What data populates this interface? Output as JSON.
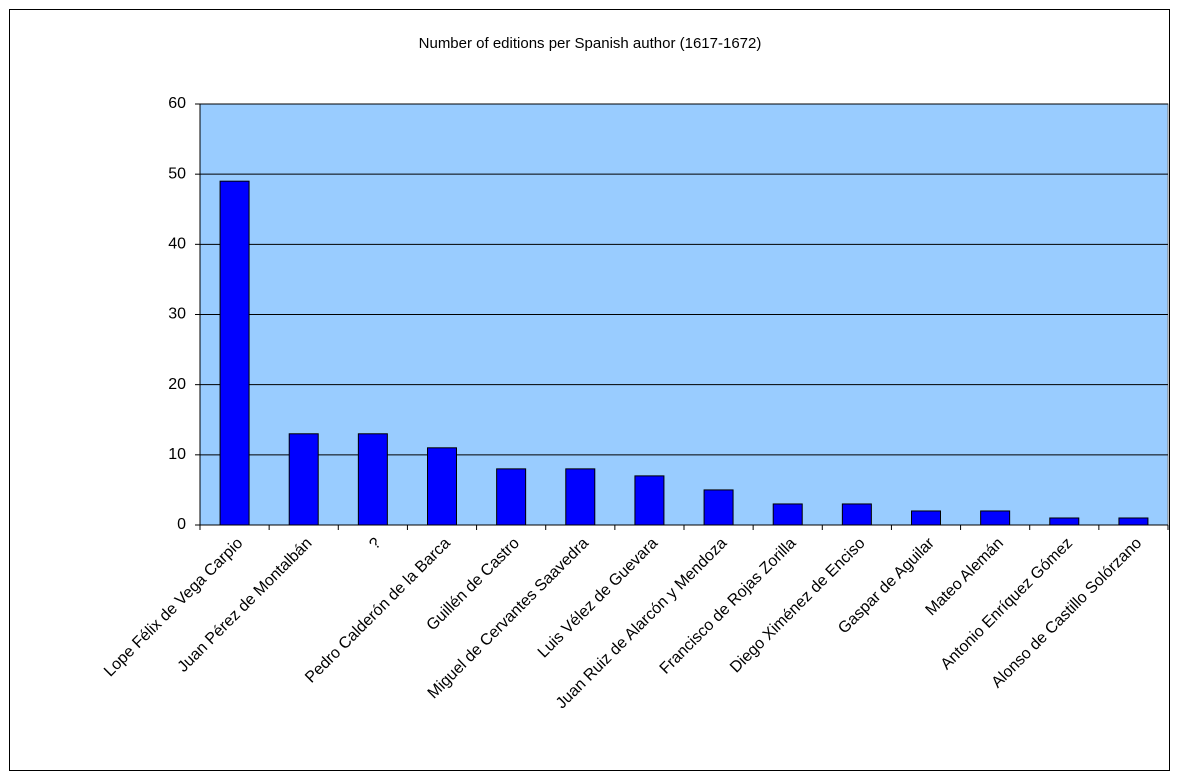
{
  "chart_data": {
    "type": "bar",
    "title": "Number of editions per Spanish author (1617-1672)",
    "categories": [
      "Lope Félix de Vega Carpio",
      "Juan Pérez de Montalbán",
      "?",
      "Pedro Calderón de la Barca",
      "Guillén de Castro",
      "Miguel de Cervantes Saavedra",
      "Luis Vélez de Guevara",
      "Juan Ruiz de Alarcón y Mendoza",
      "Francisco de Rojas Zorilla",
      "Diego Ximénez de Enciso",
      "Gaspar de Aguilar",
      "Mateo Alemán",
      "Antonio Enríquez Gómez",
      "Alonso de Castillo Solórzano"
    ],
    "values": [
      49,
      13,
      13,
      11,
      8,
      8,
      7,
      5,
      3,
      3,
      2,
      2,
      1,
      1
    ],
    "color": "#0000ff",
    "background": "#99ccff",
    "ylim": [
      0,
      60
    ],
    "yticks": [
      0,
      10,
      20,
      30,
      40,
      50,
      60
    ],
    "grid": true
  }
}
